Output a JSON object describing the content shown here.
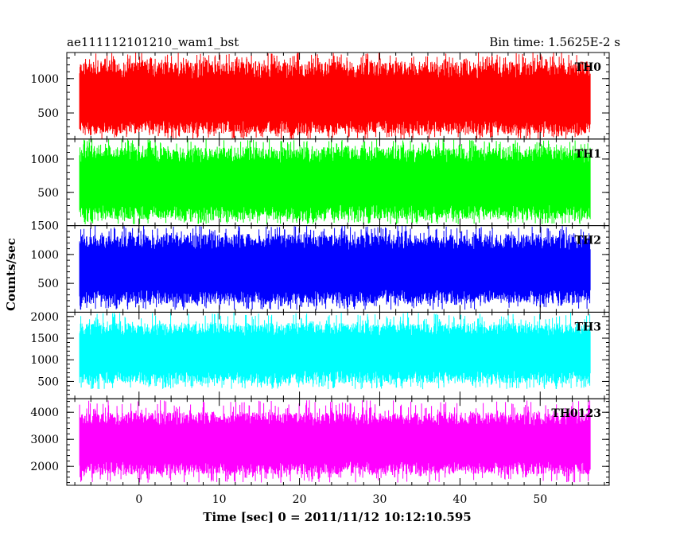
{
  "header": {
    "title_left": "ae111112101210_wam1_bst",
    "title_right": "Bin time: 1.5625E-2 s"
  },
  "ylabel": "Counts/sec",
  "xlabel": "Time [sec] 0 = 2011/11/12 10:12:10.595",
  "chart_data": {
    "type": "line",
    "xlim": [
      -9,
      58.6
    ],
    "x_range_data": [
      -7.4,
      56.2
    ],
    "bin_time_s": 0.015625,
    "xticks": [
      0,
      10,
      20,
      30,
      40,
      50
    ],
    "xtick_labels": [
      "0",
      "10",
      "20",
      "30",
      "40",
      "50"
    ],
    "panels": [
      {
        "name": "TH0",
        "color": "#ff0000",
        "ylim": [
          120,
          1380
        ],
        "yticks": [
          500,
          1000
        ],
        "ytick_labels": [
          "500",
          "1000"
        ],
        "level": 700,
        "band_low": 200,
        "band_high": 1250,
        "tail_low": 120,
        "tail_high": 1380
      },
      {
        "name": "TH1",
        "color": "#00ff00",
        "ylim": [
          0,
          1300
        ],
        "yticks": [
          500,
          1000
        ],
        "ytick_labels": [
          "500",
          "1000"
        ],
        "level": 650,
        "band_low": 90,
        "band_high": 1180,
        "tail_low": 20,
        "tail_high": 1300
      },
      {
        "name": "TH2",
        "color": "#0000ff",
        "ylim": [
          0,
          1500
        ],
        "yticks": [
          500,
          1000,
          1500
        ],
        "ytick_labels": [
          "500",
          "1000",
          "1500"
        ],
        "level": 750,
        "band_low": 150,
        "band_high": 1350,
        "tail_low": 40,
        "tail_high": 1500
      },
      {
        "name": "TH3",
        "color": "#00ffff",
        "ylim": [
          100,
          2100
        ],
        "yticks": [
          500,
          1000,
          1500,
          2000
        ],
        "ytick_labels": [
          "500",
          "1000",
          "1500",
          "2000"
        ],
        "level": 1200,
        "band_low": 450,
        "band_high": 1850,
        "tail_low": 320,
        "tail_high": 2100
      },
      {
        "name": "TH0123",
        "color": "#ff00ff",
        "ylim": [
          1300,
          4500
        ],
        "yticks": [
          2000,
          3000,
          4000
        ],
        "ytick_labels": [
          "2000",
          "3000",
          "4000"
        ],
        "level": 2900,
        "band_low": 1700,
        "band_high": 4000,
        "tail_low": 1400,
        "tail_high": 4450
      }
    ]
  }
}
